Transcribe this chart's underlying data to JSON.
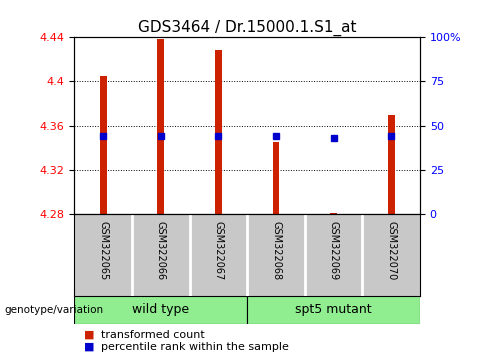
{
  "title": "GDS3464 / Dr.15000.1.S1_at",
  "samples": [
    "GSM322065",
    "GSM322066",
    "GSM322067",
    "GSM322068",
    "GSM322069",
    "GSM322070"
  ],
  "transformed_count": [
    4.405,
    4.438,
    4.428,
    4.345,
    4.281,
    4.37
  ],
  "percentile_rank_pct": [
    44,
    44,
    44,
    44,
    43,
    44
  ],
  "y_min": 4.28,
  "y_max": 4.44,
  "y_ticks_left": [
    4.28,
    4.32,
    4.36,
    4.4,
    4.44
  ],
  "y_ticks_right_pct": [
    0,
    25,
    50,
    75,
    100
  ],
  "bar_color": "#CC2200",
  "dot_color": "#0000CC",
  "group_color": "#90EE90",
  "label_bg_color": "#c8c8c8",
  "group_labels": [
    "wild type",
    "spt5 mutant"
  ],
  "legend_labels": [
    "transformed count",
    "percentile rank within the sample"
  ],
  "legend_colors": [
    "#CC2200",
    "#0000CC"
  ],
  "xlabel_left": "genotype/variation",
  "title_fontsize": 11,
  "tick_fontsize": 8,
  "label_fontsize": 7,
  "group_fontsize": 9,
  "legend_fontsize": 8,
  "bar_width": 0.12
}
